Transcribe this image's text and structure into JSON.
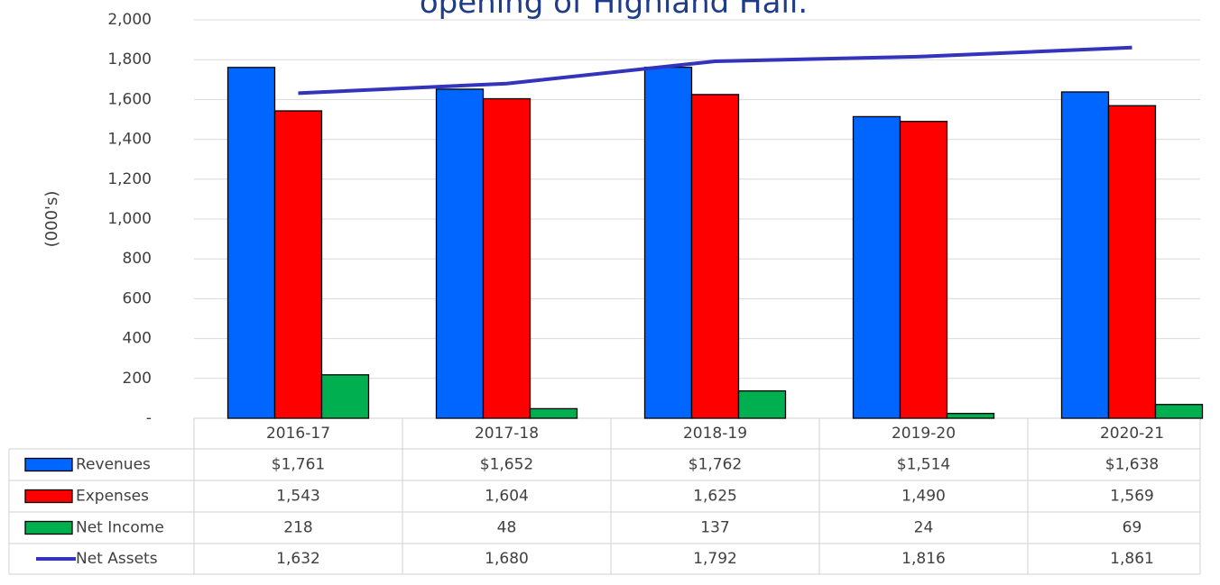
{
  "chart_data": {
    "type": "bar",
    "title": "opening of Highland Hall.",
    "y_label": "(000's)",
    "categories": [
      "2016-17",
      "2017-18",
      "2018-19",
      "2019-20",
      "2020-21"
    ],
    "series": [
      {
        "name": "Revenues",
        "type": "bar",
        "color": "#0066ff",
        "values": [
          1761,
          1652,
          1762,
          1514,
          1638
        ],
        "value_labels": [
          "$1,761",
          "$1,652",
          "$1,762",
          "$1,514",
          "$1,638"
        ]
      },
      {
        "name": "Expenses",
        "type": "bar",
        "color": "#ff0000",
        "values": [
          1543,
          1604,
          1625,
          1490,
          1569
        ],
        "value_labels": [
          "1,543",
          "1,604",
          "1,625",
          "1,490",
          "1,569"
        ]
      },
      {
        "name": "Net Income",
        "type": "bar",
        "color": "#00b050",
        "values": [
          218,
          48,
          137,
          24,
          69
        ]
      },
      {
        "name": "Net Assets",
        "type": "line",
        "color": "#3333bb",
        "values": [
          1632,
          1680,
          1792,
          1816,
          1861
        ],
        "value_labels": [
          "1,632",
          "1,680",
          "1,792",
          "1,816",
          "1,861"
        ]
      }
    ],
    "ylim": [
      0,
      2000
    ],
    "yticks": [
      {
        "value": 0,
        "label": "-"
      },
      200,
      400,
      600,
      800,
      {
        "value": 1000,
        "label": "1,000"
      },
      {
        "value": 1200,
        "label": "1,200"
      },
      {
        "value": 1400,
        "label": "1,400"
      },
      {
        "value": 1600,
        "label": "1,600"
      },
      {
        "value": 1800,
        "label": "1,800"
      },
      {
        "value": 2000,
        "label": "2,000"
      }
    ],
    "grid": true
  }
}
